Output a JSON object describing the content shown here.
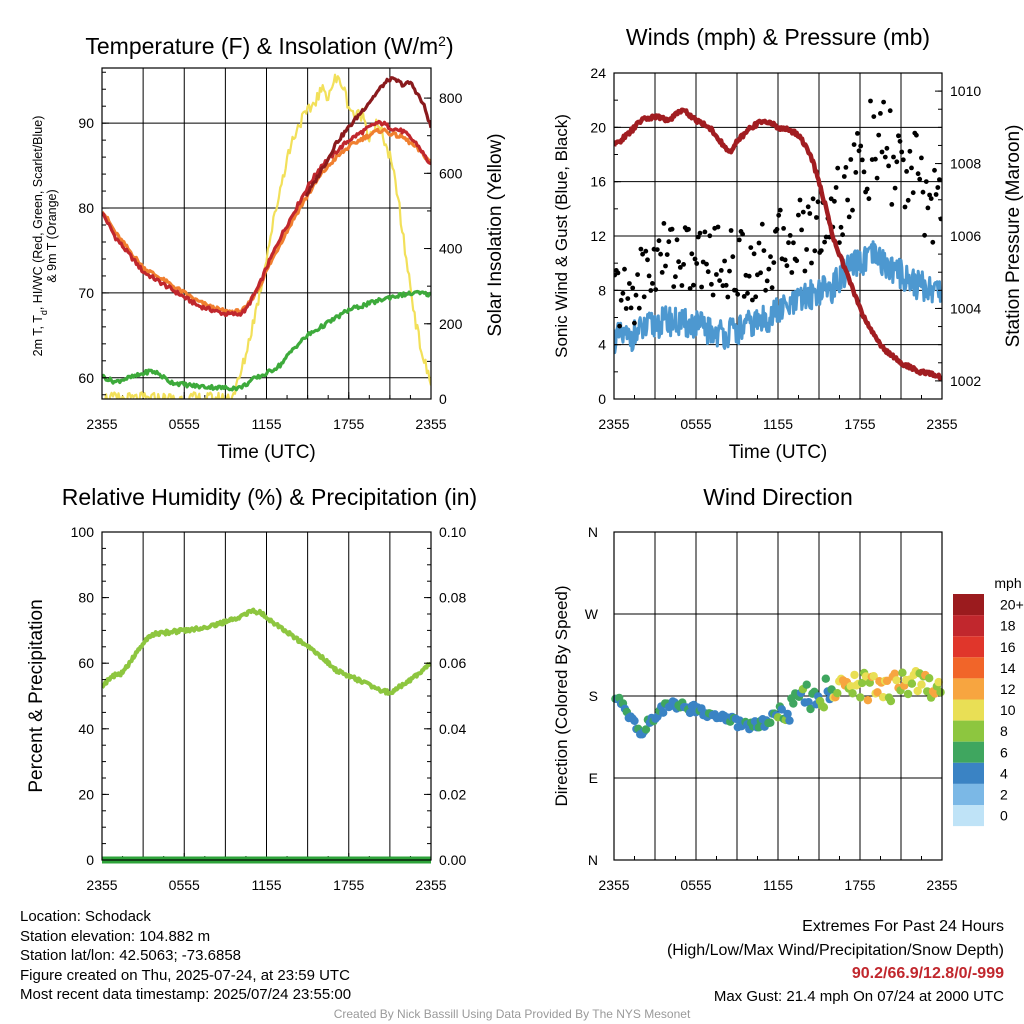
{
  "chart_data": [
    {
      "type": "line",
      "title_main": "Temperature (F) & Insolation (W/m",
      "title_sup": "2",
      "title_end": ")",
      "xlabel": "Time (UTC)",
      "ylabel_left_line1": "2m T, T",
      "ylabel_left_sub": "d",
      "ylabel_left_rest": ", HI/WC (Red, Green, Scarlet/Blue)",
      "ylabel_left_line2": "& 9m T (Orange)",
      "ylabel_right": "Solar Insolation (Yellow)",
      "x_ticks": [
        "2355",
        "0555",
        "1155",
        "1755",
        "2355"
      ],
      "x_range_hours": [
        0,
        24
      ],
      "ylim_left": [
        57.5,
        96.5
      ],
      "y_ticks_left": [
        60,
        70,
        80,
        90
      ],
      "ylim_right": [
        0,
        880
      ],
      "y_ticks_right": [
        0,
        200,
        400,
        600,
        800
      ],
      "series": [
        {
          "color": "#c0272d",
          "axis": "left",
          "hours": [
            0,
            1,
            2,
            3,
            4,
            5,
            6,
            7,
            8,
            9,
            10,
            10.5,
            11,
            11.5,
            12,
            13,
            14,
            15,
            16,
            17,
            18,
            19,
            20,
            20.5,
            21,
            22,
            23,
            24
          ],
          "values": [
            79.5,
            76.5,
            74.5,
            72.5,
            71.5,
            70.5,
            69.5,
            68.5,
            68,
            67.5,
            67.5,
            68,
            69.5,
            71,
            73,
            76.5,
            79.5,
            82.5,
            85,
            86.5,
            88,
            89,
            90,
            90,
            89.5,
            89,
            87.5,
            85
          ]
        },
        {
          "color": "#f07f2f",
          "axis": "left",
          "hours": [
            0,
            1,
            2,
            3,
            4,
            5,
            6,
            7,
            8,
            9,
            10,
            10.5,
            11,
            11.5,
            12,
            13,
            14,
            15,
            16,
            17,
            18,
            19,
            20,
            20.5,
            21,
            22,
            23,
            24
          ],
          "values": [
            79.8,
            77,
            75,
            73,
            72,
            71,
            70,
            69,
            68.3,
            67.8,
            67.8,
            68.2,
            69.5,
            70.8,
            72.6,
            75.8,
            78.8,
            81.5,
            84,
            85.8,
            87.2,
            88.2,
            89,
            89.2,
            88.8,
            88.3,
            87,
            85.4
          ]
        },
        {
          "color": "#8a1a1d",
          "axis": "left",
          "hours": [
            14.9,
            15.5,
            16,
            16.5,
            17,
            17.5,
            18,
            18.5,
            19,
            19.5,
            20,
            20.5,
            21,
            21.5,
            22,
            22.5,
            23,
            23.5,
            24
          ],
          "values": [
            81.5,
            83,
            84.5,
            85.8,
            87.5,
            88.5,
            89.5,
            90.5,
            91.5,
            92.5,
            93.5,
            94.5,
            95.2,
            95,
            94.5,
            94.8,
            93.5,
            92,
            89.5
          ]
        },
        {
          "color": "#3daa3b",
          "axis": "left",
          "hours": [
            0,
            0.5,
            1,
            1.5,
            2,
            2.5,
            3,
            3.5,
            4,
            5,
            6,
            7,
            8,
            9,
            10,
            10.5,
            11,
            12,
            13,
            14,
            15,
            16,
            17,
            18,
            19,
            20,
            21,
            22,
            23,
            24
          ],
          "values": [
            60.2,
            59.8,
            59.5,
            59.8,
            60,
            60.2,
            60.5,
            60.8,
            60.6,
            59.5,
            59.2,
            59,
            58.9,
            58.8,
            58.8,
            59.2,
            59.8,
            60.5,
            61.5,
            63.5,
            65,
            66,
            67,
            68,
            68.5,
            69,
            69.5,
            69.8,
            70,
            69.8
          ]
        },
        {
          "color": "#f2e05a",
          "axis": "right",
          "hours": [
            0,
            1,
            2,
            3,
            4,
            5,
            6,
            7,
            8,
            9,
            9.5,
            10,
            10.5,
            11,
            11.5,
            12,
            12.5,
            13,
            13.5,
            14,
            14.5,
            15,
            15.5,
            16,
            16.5,
            17,
            17.5,
            18,
            18.5,
            19,
            19.5,
            20,
            20.5,
            21,
            21.5,
            22,
            22.5,
            23,
            23.5,
            24
          ],
          "values": [
            2,
            0,
            0,
            0,
            0,
            0,
            0,
            0,
            0,
            0,
            8,
            50,
            120,
            200,
            280,
            380,
            470,
            560,
            640,
            700,
            740,
            760,
            790,
            820,
            810,
            850,
            840,
            780,
            750,
            760,
            700,
            730,
            700,
            640,
            560,
            420,
            300,
            180,
            100,
            40
          ]
        }
      ]
    },
    {
      "type": "scatter",
      "title": "Winds (mph) & Pressure (mb)",
      "xlabel": "Time (UTC)",
      "ylabel_left": "Sonic Wind & Gust (Blue, Black)",
      "ylabel_right": "Station Pressure (Maroon)",
      "x_ticks": [
        "2355",
        "0555",
        "1155",
        "1755",
        "2355"
      ],
      "x_range_hours": [
        0,
        24
      ],
      "ylim_left": [
        0,
        24
      ],
      "y_ticks_left": [
        0,
        4,
        8,
        12,
        16,
        20,
        24
      ],
      "ylim_right": [
        1001.5,
        1010.5
      ],
      "y_ticks_right": [
        1002,
        1004,
        1006,
        1008,
        1010
      ],
      "wind": {
        "color": "#4d98d0",
        "hours": [
          0,
          1,
          2,
          3,
          4,
          5,
          6,
          7,
          8,
          9,
          10,
          11,
          12,
          13,
          14,
          15,
          16,
          17,
          18,
          19,
          20,
          21,
          22,
          23,
          24
        ],
        "values": [
          4.5,
          4.5,
          5,
          5.5,
          5.8,
          5.5,
          5.5,
          5,
          4.8,
          5,
          5.5,
          5.8,
          6.5,
          6.8,
          7.5,
          8,
          8.2,
          9.5,
          10,
          10.5,
          9.8,
          9.2,
          8.5,
          8.2,
          8
        ]
      },
      "gust": {
        "color": "#000000",
        "hours": [
          0,
          1,
          2,
          3,
          4,
          5,
          6,
          7,
          8,
          9,
          10,
          11,
          12,
          13,
          14,
          15,
          16,
          17,
          18,
          19,
          20,
          21,
          22,
          23,
          24
        ],
        "values": [
          8,
          7,
          9,
          10,
          11,
          10.5,
          10,
          10.5,
          10,
          9.8,
          10,
          10.2,
          11,
          12,
          12.2,
          13,
          14,
          15.5,
          17,
          18.5,
          18,
          17,
          16,
          15,
          13.5
        ]
      },
      "pressure": {
        "color": "#a11d21",
        "hours": [
          0,
          1,
          2,
          3,
          4,
          5,
          6,
          7,
          8,
          8.5,
          9,
          10,
          11,
          11.5,
          12,
          13,
          13.5,
          14,
          14.5,
          15,
          15.5,
          16,
          16.5,
          17,
          17.5,
          18,
          18.5,
          19,
          19.5,
          20,
          21,
          22,
          23,
          24
        ],
        "values": [
          1008.5,
          1008.8,
          1009.2,
          1009.3,
          1009.2,
          1009.5,
          1009.2,
          1009,
          1008.5,
          1008.3,
          1008.6,
          1009,
          1009.2,
          1009.1,
          1009,
          1008.9,
          1008.8,
          1008.5,
          1008.1,
          1007.5,
          1006.8,
          1006,
          1005.5,
          1005,
          1004.5,
          1004,
          1003.6,
          1003.3,
          1003,
          1002.8,
          1002.5,
          1002.3,
          1002.2,
          1002.1
        ]
      }
    },
    {
      "type": "line",
      "title": "Relative Humidity (%) & Precipitation (in)",
      "ylabel_left": "Percent & Precipitation",
      "x_ticks": [
        "2355",
        "0555",
        "1155",
        "1755",
        "2355"
      ],
      "x_range_hours": [
        0,
        24
      ],
      "ylim_left": [
        0,
        100
      ],
      "y_ticks_left": [
        0,
        20,
        40,
        60,
        80,
        100
      ],
      "ylim_right": [
        0,
        0.1
      ],
      "y_ticks_right": [
        "0.00",
        "0.02",
        "0.04",
        "0.06",
        "0.08",
        "0.10"
      ],
      "series": [
        {
          "color": "#8dc63f",
          "hours": [
            0,
            0.5,
            1,
            1.5,
            2,
            2.5,
            3,
            3.5,
            4,
            5,
            6,
            7,
            8,
            9,
            10,
            10.5,
            11,
            11.5,
            12,
            13,
            14,
            15,
            16,
            17,
            18,
            19,
            20,
            20.5,
            21,
            22,
            23,
            24
          ],
          "values": [
            53,
            55,
            56.5,
            57,
            60,
            63,
            66,
            68.5,
            69,
            69.5,
            70,
            70.5,
            71.5,
            72.5,
            74,
            75,
            76,
            75.5,
            74,
            71,
            68,
            65,
            62,
            58,
            56,
            54.5,
            52.5,
            51.5,
            51,
            53.5,
            56.5,
            60
          ]
        },
        {
          "color": "#2ea33a",
          "hours": [
            0,
            24
          ],
          "values": [
            0,
            0
          ]
        }
      ]
    },
    {
      "type": "scatter",
      "title": "Wind Direction",
      "ylabel": "Direction (Colored By Speed)",
      "x_ticks": [
        "2355",
        "0555",
        "1155",
        "1755",
        "2355"
      ],
      "x_range_hours": [
        0,
        24
      ],
      "y_ticks": [
        "N",
        "E",
        "S",
        "W",
        "N"
      ],
      "ylim_deg": [
        0,
        360
      ],
      "legend_title": "mph",
      "legend_labels": [
        "20+",
        "18",
        "16",
        "14",
        "12",
        "10",
        "8",
        "6",
        "4",
        "2",
        "0"
      ],
      "legend_colors": [
        "#9b1b1e",
        "#c1272d",
        "#e0362b",
        "#f16529",
        "#f7a540",
        "#e9df55",
        "#8dc63f",
        "#3fa65f",
        "#3a83c4",
        "#7bb8e6",
        "#bfe3f7"
      ],
      "direction": {
        "hours": [
          0,
          0.5,
          1,
          1.5,
          2,
          2.5,
          3,
          3.5,
          4,
          5,
          6,
          7,
          8,
          9,
          10,
          11,
          12,
          13,
          14,
          15,
          16,
          17,
          18,
          19,
          20,
          21,
          22,
          23,
          24
        ],
        "values": [
          180,
          172,
          160,
          150,
          140,
          150,
          155,
          165,
          170,
          168,
          165,
          160,
          157,
          150,
          148,
          150,
          160,
          170,
          178,
          182,
          186,
          188,
          190,
          188,
          190,
          191,
          192,
          190,
          190
        ]
      }
    }
  ],
  "info": {
    "location": "Location: Schodack",
    "elevation": "Station elevation: 104.882 m",
    "latlon": "Station lat/lon: 42.5063; -73.6858",
    "created": "Figure created on Thu, 2025-07-24, at 23:59 UTC",
    "recent": "Most recent data timestamp: 2025/07/24 23:55:00"
  },
  "extremes": {
    "title": "Extremes For Past 24 Hours",
    "subtitle": "(High/Low/Max Wind/Precipitation/Snow Depth)",
    "values": "90.2/66.9/12.8/0/-999",
    "max_gust": "Max Gust: 21.4 mph On 07/24 at 2000 UTC",
    "values_color": "#c1272d"
  },
  "credit": "Created By Nick Bassill Using Data Provided By The NYS Mesonet"
}
